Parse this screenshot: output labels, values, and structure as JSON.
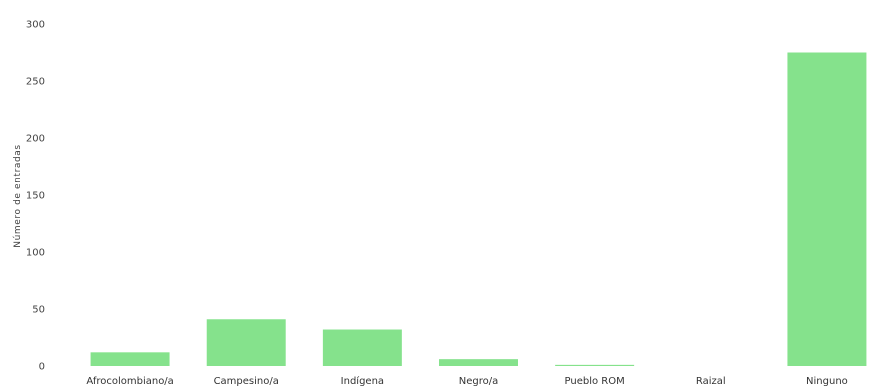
{
  "chart_data": {
    "type": "bar",
    "title": "",
    "xlabel": "",
    "ylabel": "Número de entradas",
    "ylim": [
      0,
      300
    ],
    "yticks": [
      0,
      50,
      100,
      150,
      200,
      250,
      300
    ],
    "grid": false,
    "bar_color": "#85e28c",
    "categories": [
      "Afrocolombiano/a",
      "Campesino/a",
      "Indígena",
      "Negro/a",
      "Pueblo ROM",
      "Raizal",
      "Ninguno"
    ],
    "values": [
      12,
      41,
      32,
      6,
      1,
      0,
      275
    ]
  }
}
